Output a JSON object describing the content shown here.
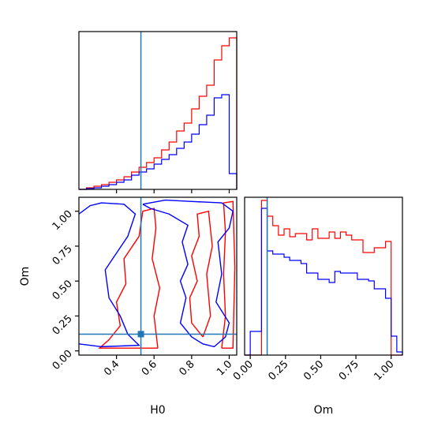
{
  "chart_data": {
    "type": "corner",
    "parameters": [
      "H0",
      "Om"
    ],
    "truth": {
      "H0": 0.53,
      "Om": 0.12
    },
    "colors": {
      "series_a": "#ff0000",
      "series_b": "#0000ff",
      "truth": "#1f77b4",
      "axes": "#000000"
    },
    "series": [
      {
        "color_key": "series_a",
        "hist_H0": {
          "bin_edges": [
            0.2,
            0.24,
            0.28,
            0.32,
            0.36,
            0.4,
            0.44,
            0.48,
            0.52,
            0.56,
            0.6,
            0.64,
            0.68,
            0.72,
            0.76,
            0.8,
            0.84,
            0.88,
            0.92,
            0.96,
            1.0,
            1.04
          ],
          "heights": [
            0.0,
            0.01,
            0.02,
            0.03,
            0.045,
            0.06,
            0.08,
            0.11,
            0.14,
            0.17,
            0.2,
            0.25,
            0.3,
            0.37,
            0.42,
            0.51,
            0.59,
            0.66,
            0.82,
            0.91,
            0.96
          ]
        },
        "hist_Om": {
          "bin_edges": [
            -0.04,
            0.0,
            0.04,
            0.08,
            0.12,
            0.16,
            0.2,
            0.24,
            0.28,
            0.32,
            0.36,
            0.4,
            0.44,
            0.48,
            0.52,
            0.56,
            0.6,
            0.64,
            0.68,
            0.72,
            0.76,
            0.8,
            0.84,
            0.88,
            0.92,
            0.96,
            1.0,
            1.04,
            1.08
          ],
          "heights": [
            0.0,
            0.0,
            0.0,
            0.98,
            0.88,
            0.82,
            0.76,
            0.8,
            0.75,
            0.77,
            0.77,
            0.73,
            0.8,
            0.74,
            0.74,
            0.78,
            0.74,
            0.78,
            0.76,
            0.73,
            0.73,
            0.65,
            0.65,
            0.68,
            0.68,
            0.72,
            0.0,
            0.0
          ]
        },
        "contours": [
          [
            [
              0.96,
              0.02
            ],
            [
              0.98,
              0.25
            ],
            [
              0.97,
              0.55
            ],
            [
              0.98,
              0.85
            ],
            [
              0.97,
              1.06
            ],
            [
              1.02,
              1.07
            ],
            [
              1.03,
              0.6
            ],
            [
              1.02,
              0.02
            ],
            [
              0.96,
              0.02
            ]
          ],
          [
            [
              0.86,
              0.1
            ],
            [
              0.8,
              0.2
            ],
            [
              0.79,
              0.38
            ],
            [
              0.83,
              0.5
            ],
            [
              0.8,
              0.68
            ],
            [
              0.84,
              0.82
            ],
            [
              0.83,
              0.98
            ],
            [
              0.89,
              1.0
            ],
            [
              0.91,
              0.75
            ],
            [
              0.88,
              0.55
            ],
            [
              0.9,
              0.25
            ],
            [
              0.86,
              0.1
            ]
          ],
          [
            [
              0.62,
              0.02
            ],
            [
              0.6,
              0.25
            ],
            [
              0.63,
              0.45
            ],
            [
              0.59,
              0.66
            ],
            [
              0.61,
              0.88
            ],
            [
              0.6,
              1.02
            ],
            [
              0.54,
              1.0
            ],
            [
              0.52,
              0.82
            ],
            [
              0.44,
              0.66
            ],
            [
              0.45,
              0.48
            ],
            [
              0.4,
              0.35
            ],
            [
              0.42,
              0.18
            ],
            [
              0.36,
              0.08
            ],
            [
              0.31,
              0.02
            ],
            [
              0.62,
              0.02
            ]
          ]
        ]
      },
      {
        "color_key": "series_b",
        "hist_H0": {
          "bin_edges": [
            0.2,
            0.24,
            0.28,
            0.32,
            0.36,
            0.4,
            0.44,
            0.48,
            0.52,
            0.56,
            0.6,
            0.64,
            0.68,
            0.72,
            0.76,
            0.8,
            0.84,
            0.88,
            0.92,
            0.96,
            1.0,
            1.04
          ],
          "heights": [
            0.0,
            0.005,
            0.01,
            0.02,
            0.03,
            0.045,
            0.06,
            0.09,
            0.11,
            0.13,
            0.16,
            0.19,
            0.22,
            0.26,
            0.3,
            0.35,
            0.41,
            0.47,
            0.58,
            0.6,
            0.1
          ]
        },
        "hist_Om": {
          "bin_edges": [
            -0.04,
            0.0,
            0.04,
            0.08,
            0.12,
            0.16,
            0.2,
            0.24,
            0.28,
            0.32,
            0.36,
            0.4,
            0.44,
            0.48,
            0.52,
            0.56,
            0.6,
            0.64,
            0.68,
            0.72,
            0.76,
            0.8,
            0.84,
            0.88,
            0.92,
            0.96,
            1.0,
            1.04,
            1.08
          ],
          "heights": [
            0.0,
            0.15,
            0.15,
            0.93,
            0.66,
            0.64,
            0.64,
            0.62,
            0.6,
            0.6,
            0.58,
            0.52,
            0.52,
            0.48,
            0.48,
            0.46,
            0.53,
            0.52,
            0.52,
            0.52,
            0.48,
            0.48,
            0.47,
            0.42,
            0.42,
            0.36,
            0.12,
            0.02
          ]
        },
        "contours": [
          [
            [
              0.2,
              0.98
            ],
            [
              0.26,
              1.04
            ],
            [
              0.32,
              1.06
            ],
            [
              0.44,
              1.05
            ],
            [
              0.5,
              0.98
            ],
            [
              0.46,
              0.82
            ],
            [
              0.4,
              0.7
            ],
            [
              0.34,
              0.58
            ],
            [
              0.36,
              0.38
            ],
            [
              0.42,
              0.25
            ],
            [
              0.46,
              0.12
            ],
            [
              0.52,
              0.04
            ],
            [
              0.32,
              0.03
            ],
            [
              0.2,
              0.05
            ]
          ],
          [
            [
              0.54,
              1.05
            ],
            [
              0.66,
              1.08
            ],
            [
              0.8,
              1.07
            ],
            [
              0.96,
              1.06
            ],
            [
              1.02,
              1.0
            ],
            [
              1.0,
              0.88
            ],
            [
              0.94,
              0.78
            ],
            [
              0.96,
              0.55
            ],
            [
              0.93,
              0.35
            ],
            [
              1.0,
              0.2
            ],
            [
              0.98,
              0.1
            ],
            [
              0.92,
              0.03
            ],
            [
              0.86,
              0.05
            ],
            [
              0.8,
              0.1
            ],
            [
              0.74,
              0.2
            ],
            [
              0.77,
              0.38
            ],
            [
              0.74,
              0.5
            ],
            [
              0.78,
              0.62
            ],
            [
              0.75,
              0.78
            ],
            [
              0.78,
              0.9
            ],
            [
              0.68,
              0.98
            ],
            [
              0.58,
              1.02
            ],
            [
              0.54,
              1.05
            ]
          ]
        ]
      }
    ],
    "panels": [
      {
        "id": "hist-H0",
        "param": "H0",
        "xlim": [
          0.2,
          1.04
        ],
        "xticks": [
          0.4,
          0.6,
          0.8,
          1.0
        ],
        "show_labels": false
      },
      {
        "id": "scatter-H0-Om",
        "x_param": "H0",
        "y_param": "Om",
        "xlim": [
          0.2,
          1.04
        ],
        "ylim": [
          -0.03,
          1.1
        ],
        "xticks": [
          0.4,
          0.6,
          0.8,
          1.0
        ],
        "yticks": [
          0.0,
          0.25,
          0.5,
          0.75,
          1.0
        ],
        "xtick_labels": [
          "0.4",
          "0.6",
          "0.8",
          "1.0"
        ],
        "ytick_labels": [
          "0.00",
          "0.25",
          "0.50",
          "0.75",
          "1.00"
        ],
        "xlabel": "H0",
        "ylabel": "Om"
      },
      {
        "id": "hist-Om",
        "param": "Om",
        "xlim": [
          -0.04,
          1.08
        ],
        "xticks": [
          0.0,
          0.25,
          0.5,
          0.75,
          1.0
        ],
        "xtick_labels": [
          "0.00",
          "0.25",
          "0.50",
          "0.75",
          "1.00"
        ],
        "xlabel": "Om"
      }
    ]
  }
}
